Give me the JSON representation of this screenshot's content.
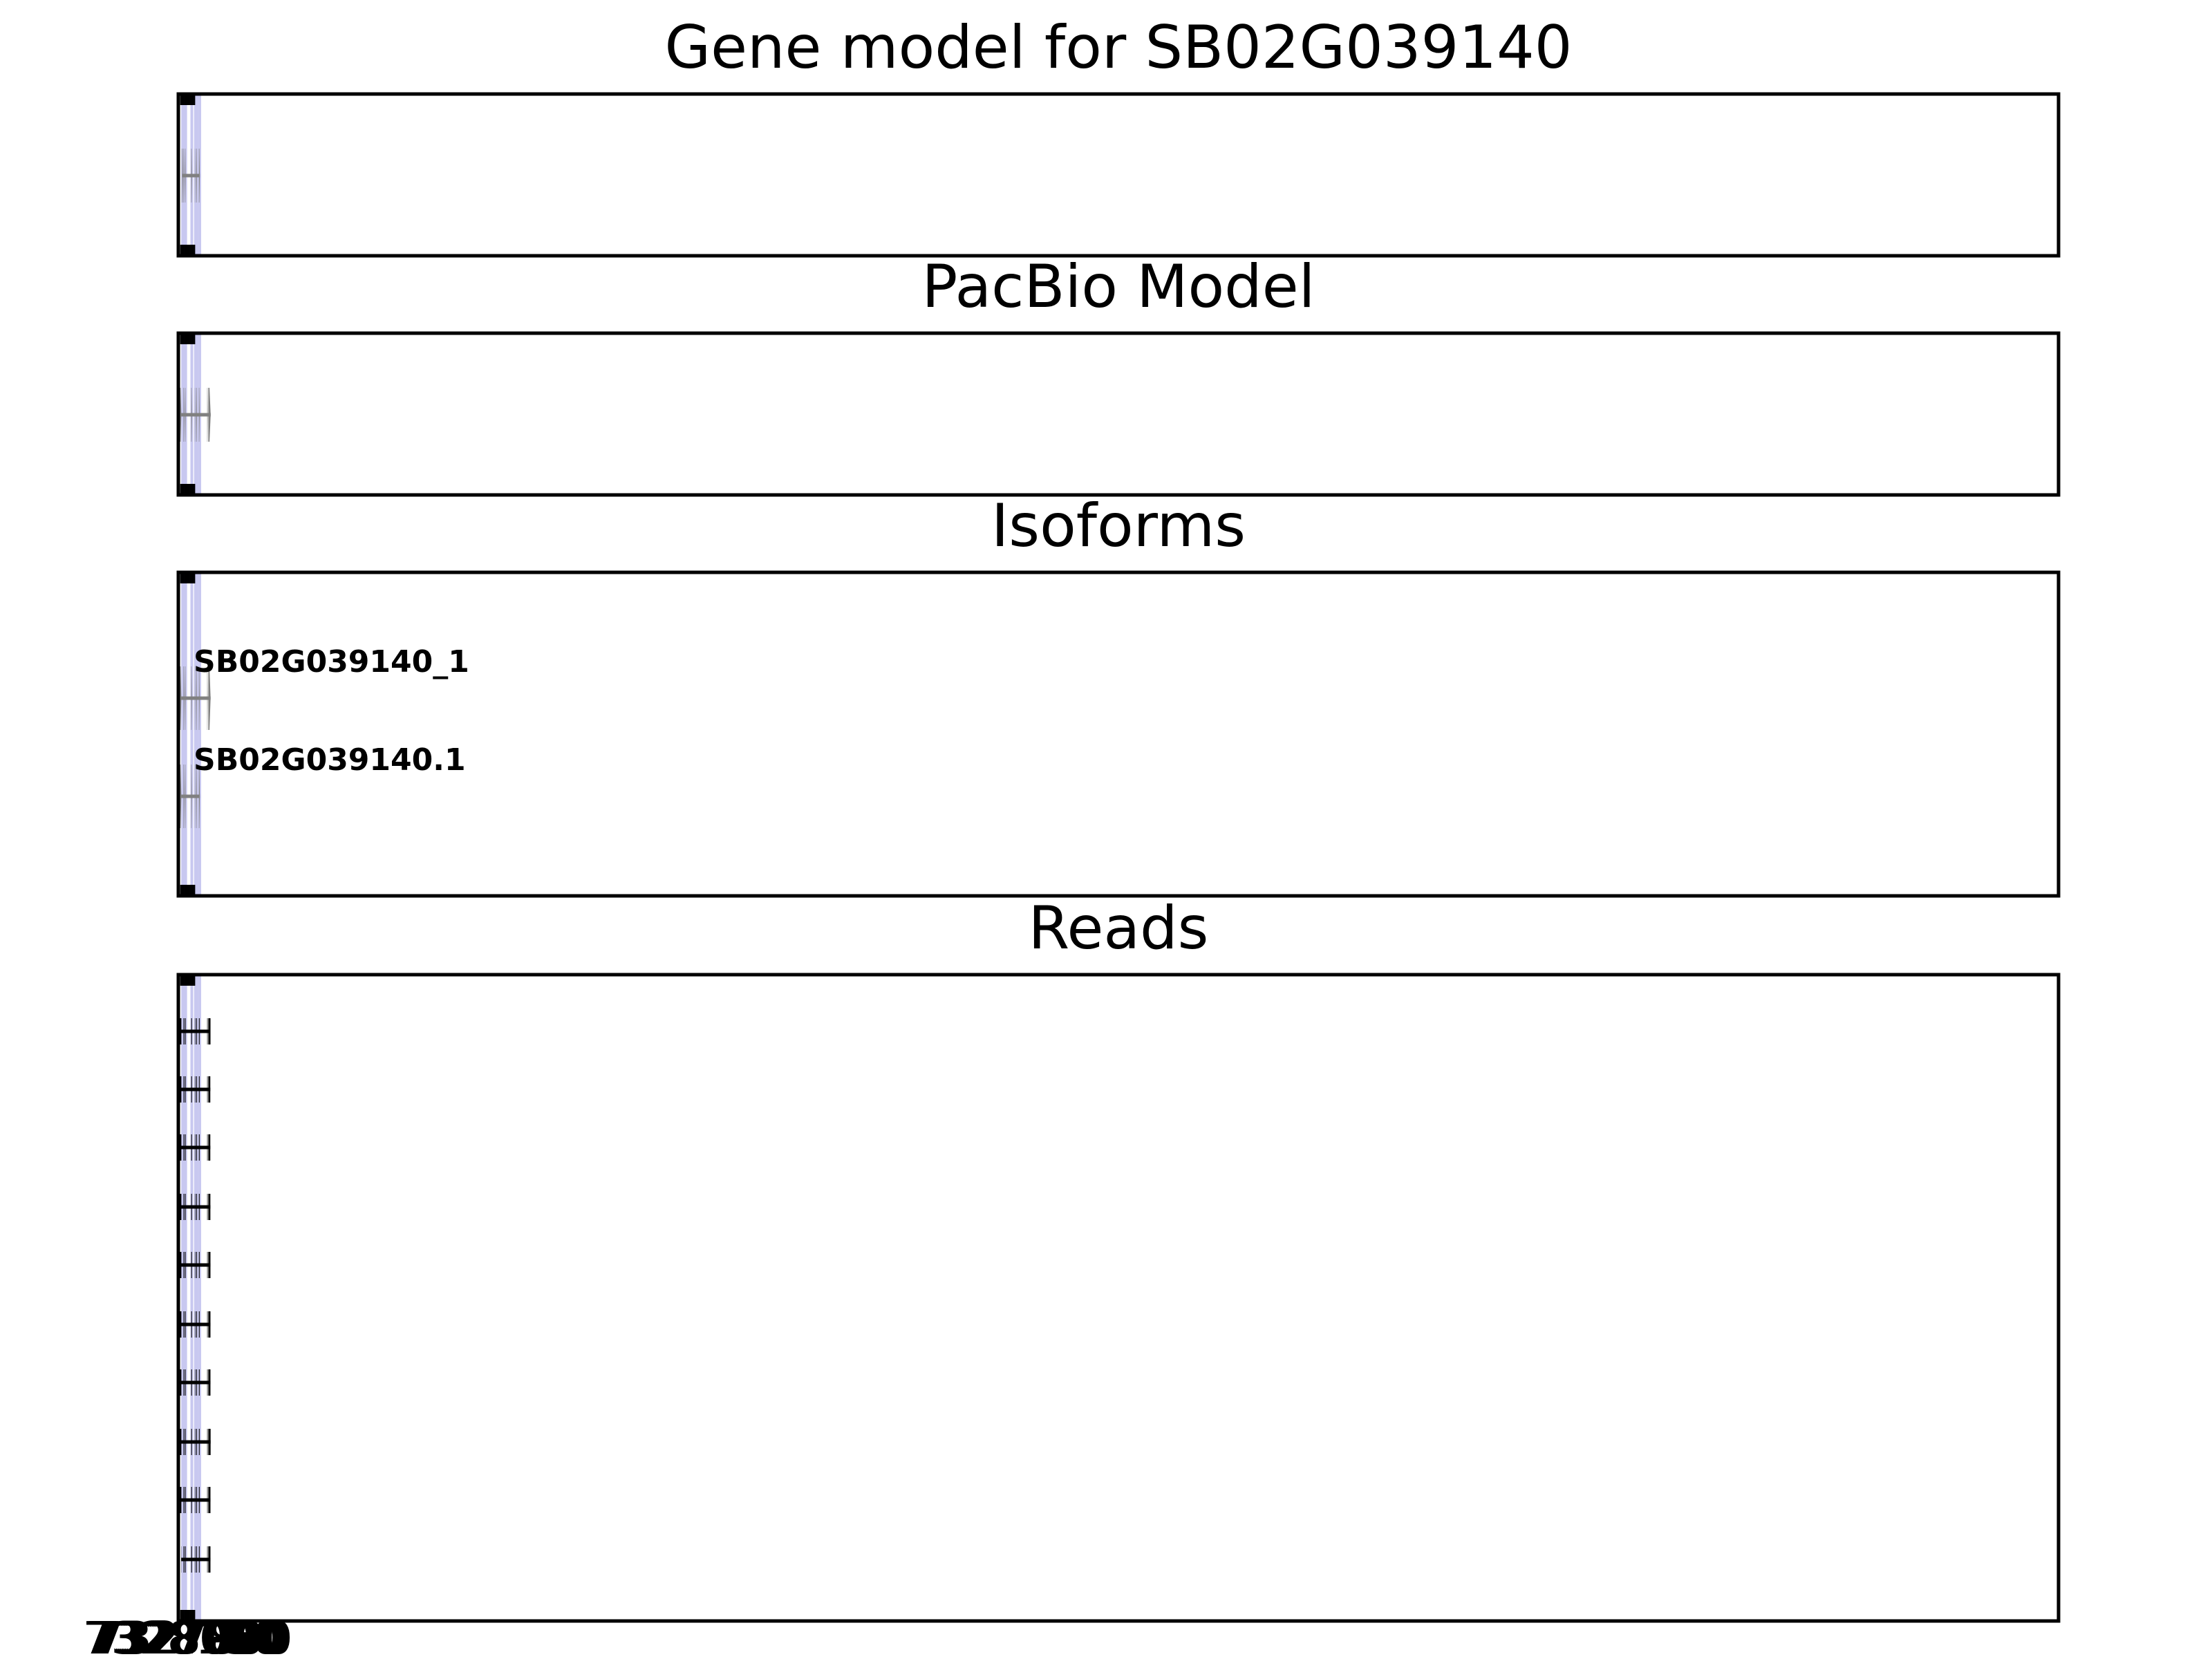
{
  "colors": {
    "highlight": "#e6e6fa",
    "highlight_edge": "#c8c8f0",
    "model_exon": "#808080",
    "model_intron": "#808080",
    "read": "#000000",
    "frame": "#000000"
  },
  "axis": {
    "xlim": [
      7328230,
      7277050
    ],
    "ticks": [
      7328150,
      7328100,
      7328050,
      7328000,
      7327950,
      7327900,
      7327850,
      7327800
    ],
    "tick_labels": [
      "7328150",
      "7328100",
      "7328050",
      "7328000",
      "7327950",
      "7327900",
      "7327850",
      "7327800"
    ],
    "direction": "reversed"
  },
  "highlights": [
    [
      7328123,
      7328102
    ],
    [
      7328080,
      7328060
    ],
    [
      7328037,
      7328021
    ],
    [
      7327873,
      7327854
    ],
    [
      7327773,
      7327761
    ],
    [
      7327733,
      7327716
    ],
    [
      7327662,
      7327638
    ]
  ],
  "chart_data": {
    "type": "gene-structure",
    "panels": [
      {
        "title": "Gene model for SB02G039140",
        "style": "model",
        "tracks": [
          {
            "label": "",
            "exons": [
              [
                7328130,
                7328106
              ],
              [
                7328088,
                7328064
              ],
              [
                7328045,
                7328027
              ],
              [
                7327880,
                7327858
              ],
              [
                7327780,
                7327766
              ],
              [
                7327740,
                7327720
              ],
              [
                7327670,
                7327645
              ]
            ]
          }
        ]
      },
      {
        "title": "PacBio Model",
        "style": "model",
        "tracks": [
          {
            "label": "",
            "exons": [
              [
                7328190,
                7328148
              ],
              [
                7328088,
                7328064
              ],
              [
                7328045,
                7328027
              ],
              [
                7327880,
                7327858
              ],
              [
                7327780,
                7327766
              ],
              [
                7327740,
                7327720
              ],
              [
                7327670,
                7327650
              ],
              [
                7327445,
                7327430
              ],
              [
                7327414,
                7327350
              ]
            ]
          }
        ]
      },
      {
        "title": "Isoforms",
        "style": "model",
        "tracks": [
          {
            "label": "SB02G039140_1",
            "exons": [
              [
                7328190,
                7328148
              ],
              [
                7328088,
                7328064
              ],
              [
                7328045,
                7328028
              ],
              [
                7327880,
                7327860
              ],
              [
                7327780,
                7327767
              ],
              [
                7327740,
                7327722
              ],
              [
                7327670,
                7327650
              ],
              [
                7327445,
                7327432
              ],
              [
                7327414,
                7327352
              ]
            ]
          },
          {
            "label": "SB02G039140.1",
            "exons": [
              [
                7328190,
                7328148
              ],
              [
                7328088,
                7328064
              ],
              [
                7328045,
                7328028
              ],
              [
                7327880,
                7327860
              ],
              [
                7327780,
                7327767
              ],
              [
                7327740,
                7327722
              ],
              [
                7327670,
                7327645
              ]
            ]
          }
        ]
      },
      {
        "title": "Reads",
        "style": "read",
        "tracks": [
          {
            "exons": [
              [
                7328190,
                7328148
              ],
              [
                7328088,
                7328066
              ],
              [
                7328045,
                7328028
              ],
              [
                7327880,
                7327860
              ],
              [
                7327780,
                7327767
              ],
              [
                7327740,
                7327722
              ],
              [
                7327670,
                7327650
              ],
              [
                7327445,
                7327432
              ],
              [
                7327414,
                7327355
              ]
            ]
          },
          {
            "exons": [
              [
                7328185,
                7328148
              ],
              [
                7328088,
                7328066
              ],
              [
                7328045,
                7328028
              ],
              [
                7327880,
                7327860
              ],
              [
                7327780,
                7327767
              ],
              [
                7327740,
                7327722
              ],
              [
                7327670,
                7327650
              ],
              [
                7327445,
                7327432
              ],
              [
                7327414,
                7327360
              ]
            ]
          },
          {
            "exons": [
              [
                7328185,
                7328148
              ],
              [
                7328088,
                7328066
              ],
              [
                7328045,
                7328028
              ],
              [
                7327880,
                7327860
              ],
              [
                7327780,
                7327767
              ],
              [
                7327740,
                7327722
              ],
              [
                7327670,
                7327650
              ],
              [
                7327445,
                7327432
              ],
              [
                7327414,
                7327360
              ]
            ]
          },
          {
            "exons": [
              [
                7328184,
                7328148
              ],
              [
                7328088,
                7328066
              ],
              [
                7328045,
                7328028
              ],
              [
                7327880,
                7327860
              ],
              [
                7327780,
                7327767
              ],
              [
                7327740,
                7327722
              ],
              [
                7327670,
                7327650
              ],
              [
                7327445,
                7327432
              ],
              [
                7327414,
                7327358
              ]
            ]
          },
          {
            "exons": [
              [
                7328184,
                7328148
              ],
              [
                7328088,
                7328066
              ],
              [
                7328045,
                7328028
              ],
              [
                7327880,
                7327860
              ],
              [
                7327780,
                7327767
              ],
              [
                7327740,
                7327722
              ],
              [
                7327670,
                7327650
              ],
              [
                7327445,
                7327432
              ],
              [
                7327414,
                7327356
              ]
            ]
          },
          {
            "exons": [
              [
                7328184,
                7328148
              ],
              [
                7328088,
                7328066
              ],
              [
                7328045,
                7328028
              ],
              [
                7327880,
                7327860
              ],
              [
                7327780,
                7327767
              ],
              [
                7327740,
                7327722
              ],
              [
                7327670,
                7327650
              ],
              [
                7327445,
                7327432
              ],
              [
                7327414,
                7327356
              ]
            ]
          },
          {
            "exons": [
              [
                7328182,
                7328148
              ],
              [
                7328088,
                7328066
              ],
              [
                7328045,
                7328028
              ],
              [
                7327880,
                7327860
              ],
              [
                7327780,
                7327767
              ],
              [
                7327740,
                7327722
              ],
              [
                7327670,
                7327650
              ],
              [
                7327445,
                7327432
              ],
              [
                7327414,
                7327356
              ]
            ]
          },
          {
            "exons": [
              [
                7328182,
                7328148
              ],
              [
                7328088,
                7328066
              ],
              [
                7328045,
                7328028
              ],
              [
                7327880,
                7327860
              ],
              [
                7327780,
                7327767
              ],
              [
                7327740,
                7327722
              ],
              [
                7327670,
                7327650
              ],
              [
                7327445,
                7327432
              ],
              [
                7327414,
                7327352
              ]
            ]
          },
          {
            "exons": [
              [
                7328182,
                7328148
              ],
              [
                7328088,
                7328066
              ],
              [
                7328045,
                7328028
              ],
              [
                7327880,
                7327860
              ],
              [
                7327780,
                7327767
              ],
              [
                7327740,
                7327722
              ],
              [
                7327670,
                7327650
              ],
              [
                7327445,
                7327432
              ],
              [
                7327414,
                7327356
              ]
            ]
          },
          {
            "exons": [
              [
                7328154,
                7328150
              ],
              [
                7328088,
                7328066
              ],
              [
                7328045,
                7328028
              ],
              [
                7327880,
                7327860
              ],
              [
                7327780,
                7327767
              ],
              [
                7327740,
                7327722
              ],
              [
                7327670,
                7327650
              ],
              [
                7327445,
                7327432
              ],
              [
                7327414,
                7327356
              ]
            ]
          }
        ]
      }
    ]
  }
}
